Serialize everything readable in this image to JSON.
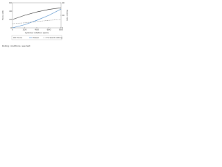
{
  "chart_data": {
    "type": "line",
    "xlabel": "Cylinder rotation (rpm)",
    "ylabel": "Force (N)",
    "y2label": "Power (W)",
    "x": [
      0,
      200,
      400,
      600,
      800
    ],
    "series": [
      {
        "name": "Force",
        "color": "#222222",
        "values": [
          20,
          30,
          38,
          44,
          48
        ]
      },
      {
        "name": "Power",
        "color": "#3a7fc4",
        "values": [
          0,
          5,
          12,
          20,
          30
        ],
        "axis": "y2"
      },
      {
        "name": "Forward sliding",
        "color": "#8a8a8a",
        "values": [
          10,
          12,
          15,
          18,
          20
        ]
      }
    ],
    "xlim": [
      0,
      800
    ],
    "xticks": [
      0,
      200,
      400,
      600,
      800
    ],
    "ylim": [
      0,
      60
    ],
    "yticks": [
      0,
      20,
      40,
      60
    ],
    "y2lim": [
      0,
      40
    ],
    "y2ticks": [
      0,
      20,
      40
    ],
    "note": "Rolling conditions: see text"
  }
}
